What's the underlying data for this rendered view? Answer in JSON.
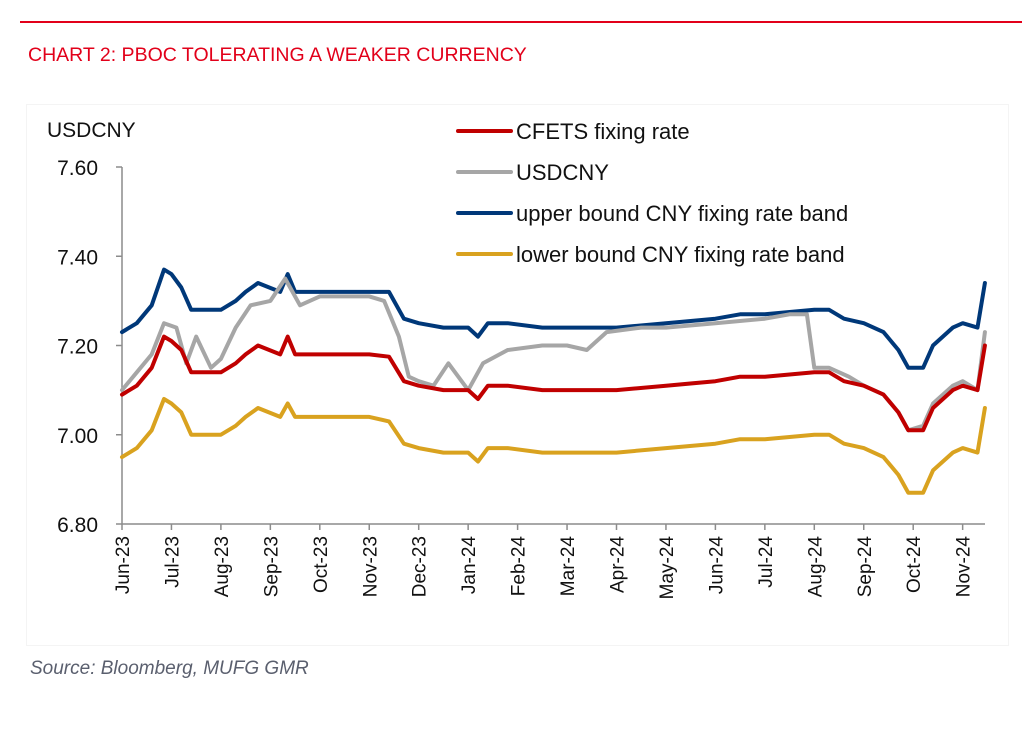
{
  "header": {
    "title": "CHART 2: PBOC TOLERATING A WEAKER CURRENCY"
  },
  "footer": {
    "source": "Source: Bloomberg, MUFG GMR"
  },
  "chart_data": {
    "type": "line",
    "title": "CHART 2: PBOC TOLERATING A WEAKER CURRENCY",
    "ylabel": "USDCNY",
    "xlabel": "",
    "ylim": [
      6.8,
      7.6
    ],
    "yticks": [
      6.8,
      7.0,
      7.2,
      7.4,
      7.6
    ],
    "ytick_labels": [
      "6.80",
      "7.00",
      "7.20",
      "7.40",
      "7.60"
    ],
    "xtick_labels": [
      "Jun-23",
      "Jul-23",
      "Aug-23",
      "Sep-23",
      "Oct-23",
      "Nov-23",
      "Dec-23",
      "Jan-24",
      "Feb-24",
      "Mar-24",
      "Apr-24",
      "May-24",
      "Jun-24",
      "Jul-24",
      "Aug-24",
      "Sep-24",
      "Oct-24",
      "Nov-24"
    ],
    "x_unit": "months since Jun-23",
    "xlim": [
      0,
      17.45
    ],
    "grid": false,
    "legend_position": "top-right",
    "series": [
      {
        "name": "CFETS fixing rate",
        "color": "#c00000",
        "points": [
          [
            0,
            7.09
          ],
          [
            0.3,
            7.11
          ],
          [
            0.6,
            7.15
          ],
          [
            0.85,
            7.22
          ],
          [
            1.0,
            7.21
          ],
          [
            1.2,
            7.19
          ],
          [
            1.4,
            7.14
          ],
          [
            1.7,
            7.14
          ],
          [
            2.0,
            7.14
          ],
          [
            2.3,
            7.16
          ],
          [
            2.5,
            7.18
          ],
          [
            2.75,
            7.2
          ],
          [
            3.2,
            7.18
          ],
          [
            3.35,
            7.22
          ],
          [
            3.5,
            7.18
          ],
          [
            4.0,
            7.18
          ],
          [
            5.0,
            7.18
          ],
          [
            5.4,
            7.175
          ],
          [
            5.7,
            7.12
          ],
          [
            6.0,
            7.11
          ],
          [
            6.5,
            7.1
          ],
          [
            7.0,
            7.1
          ],
          [
            7.2,
            7.08
          ],
          [
            7.4,
            7.11
          ],
          [
            7.8,
            7.11
          ],
          [
            8.5,
            7.1
          ],
          [
            9.0,
            7.1
          ],
          [
            10.0,
            7.1
          ],
          [
            11.0,
            7.11
          ],
          [
            12.0,
            7.12
          ],
          [
            12.5,
            7.13
          ],
          [
            13.0,
            7.13
          ],
          [
            14.0,
            7.14
          ],
          [
            14.3,
            7.14
          ],
          [
            14.6,
            7.12
          ],
          [
            15.0,
            7.11
          ],
          [
            15.4,
            7.09
          ],
          [
            15.7,
            7.05
          ],
          [
            15.9,
            7.01
          ],
          [
            16.2,
            7.01
          ],
          [
            16.4,
            7.06
          ],
          [
            16.8,
            7.1
          ],
          [
            17.0,
            7.11
          ],
          [
            17.3,
            7.1
          ],
          [
            17.45,
            7.2
          ]
        ]
      },
      {
        "name": "USDCNY",
        "color": "#a6a6a6",
        "points": [
          [
            0,
            7.1
          ],
          [
            0.3,
            7.14
          ],
          [
            0.6,
            7.18
          ],
          [
            0.85,
            7.25
          ],
          [
            1.1,
            7.24
          ],
          [
            1.3,
            7.16
          ],
          [
            1.5,
            7.22
          ],
          [
            1.8,
            7.15
          ],
          [
            2.0,
            7.17
          ],
          [
            2.3,
            7.24
          ],
          [
            2.6,
            7.29
          ],
          [
            3.0,
            7.3
          ],
          [
            3.3,
            7.35
          ],
          [
            3.6,
            7.29
          ],
          [
            4.0,
            7.31
          ],
          [
            5.0,
            7.31
          ],
          [
            5.3,
            7.3
          ],
          [
            5.6,
            7.22
          ],
          [
            5.8,
            7.13
          ],
          [
            6.0,
            7.12
          ],
          [
            6.3,
            7.11
          ],
          [
            6.6,
            7.16
          ],
          [
            6.8,
            7.13
          ],
          [
            7.0,
            7.1
          ],
          [
            7.3,
            7.16
          ],
          [
            7.8,
            7.19
          ],
          [
            8.5,
            7.2
          ],
          [
            9.0,
            7.2
          ],
          [
            9.4,
            7.19
          ],
          [
            9.8,
            7.23
          ],
          [
            10.5,
            7.24
          ],
          [
            11.0,
            7.24
          ],
          [
            12.0,
            7.25
          ],
          [
            13.0,
            7.26
          ],
          [
            13.5,
            7.27
          ],
          [
            13.85,
            7.27
          ],
          [
            14.0,
            7.15
          ],
          [
            14.3,
            7.15
          ],
          [
            14.7,
            7.13
          ],
          [
            15.0,
            7.11
          ],
          [
            15.4,
            7.09
          ],
          [
            15.7,
            7.05
          ],
          [
            15.9,
            7.01
          ],
          [
            16.2,
            7.02
          ],
          [
            16.4,
            7.07
          ],
          [
            16.8,
            7.11
          ],
          [
            17.0,
            7.12
          ],
          [
            17.3,
            7.1
          ],
          [
            17.45,
            7.23
          ]
        ]
      },
      {
        "name": "upper bound CNY fixing rate band",
        "color": "#003879",
        "points": [
          [
            0,
            7.23
          ],
          [
            0.3,
            7.25
          ],
          [
            0.6,
            7.29
          ],
          [
            0.85,
            7.37
          ],
          [
            1.0,
            7.36
          ],
          [
            1.2,
            7.33
          ],
          [
            1.4,
            7.28
          ],
          [
            1.7,
            7.28
          ],
          [
            2.0,
            7.28
          ],
          [
            2.3,
            7.3
          ],
          [
            2.5,
            7.32
          ],
          [
            2.75,
            7.34
          ],
          [
            3.2,
            7.32
          ],
          [
            3.35,
            7.36
          ],
          [
            3.5,
            7.32
          ],
          [
            4.0,
            7.32
          ],
          [
            5.0,
            7.32
          ],
          [
            5.4,
            7.32
          ],
          [
            5.7,
            7.26
          ],
          [
            6.0,
            7.25
          ],
          [
            6.5,
            7.24
          ],
          [
            7.0,
            7.24
          ],
          [
            7.2,
            7.22
          ],
          [
            7.4,
            7.25
          ],
          [
            7.8,
            7.25
          ],
          [
            8.5,
            7.24
          ],
          [
            9.0,
            7.24
          ],
          [
            10.0,
            7.24
          ],
          [
            11.0,
            7.25
          ],
          [
            12.0,
            7.26
          ],
          [
            12.5,
            7.27
          ],
          [
            13.0,
            7.27
          ],
          [
            14.0,
            7.28
          ],
          [
            14.3,
            7.28
          ],
          [
            14.6,
            7.26
          ],
          [
            15.0,
            7.25
          ],
          [
            15.4,
            7.23
          ],
          [
            15.7,
            7.19
          ],
          [
            15.9,
            7.15
          ],
          [
            16.2,
            7.15
          ],
          [
            16.4,
            7.2
          ],
          [
            16.8,
            7.24
          ],
          [
            17.0,
            7.25
          ],
          [
            17.3,
            7.24
          ],
          [
            17.45,
            7.34
          ]
        ]
      },
      {
        "name": "lower bound CNY fixing rate band",
        "color": "#d9a21f",
        "points": [
          [
            0,
            6.95
          ],
          [
            0.3,
            6.97
          ],
          [
            0.6,
            7.01
          ],
          [
            0.85,
            7.08
          ],
          [
            1.0,
            7.07
          ],
          [
            1.2,
            7.05
          ],
          [
            1.4,
            7.0
          ],
          [
            1.7,
            7.0
          ],
          [
            2.0,
            7.0
          ],
          [
            2.3,
            7.02
          ],
          [
            2.5,
            7.04
          ],
          [
            2.75,
            7.06
          ],
          [
            3.2,
            7.04
          ],
          [
            3.35,
            7.07
          ],
          [
            3.5,
            7.04
          ],
          [
            4.0,
            7.04
          ],
          [
            5.0,
            7.04
          ],
          [
            5.4,
            7.03
          ],
          [
            5.7,
            6.98
          ],
          [
            6.0,
            6.97
          ],
          [
            6.5,
            6.96
          ],
          [
            7.0,
            6.96
          ],
          [
            7.2,
            6.94
          ],
          [
            7.4,
            6.97
          ],
          [
            7.8,
            6.97
          ],
          [
            8.5,
            6.96
          ],
          [
            9.0,
            6.96
          ],
          [
            10.0,
            6.96
          ],
          [
            11.0,
            6.97
          ],
          [
            12.0,
            6.98
          ],
          [
            12.5,
            6.99
          ],
          [
            13.0,
            6.99
          ],
          [
            14.0,
            7.0
          ],
          [
            14.3,
            7.0
          ],
          [
            14.6,
            6.98
          ],
          [
            15.0,
            6.97
          ],
          [
            15.4,
            6.95
          ],
          [
            15.7,
            6.91
          ],
          [
            15.9,
            6.87
          ],
          [
            16.2,
            6.87
          ],
          [
            16.4,
            6.92
          ],
          [
            16.8,
            6.96
          ],
          [
            17.0,
            6.97
          ],
          [
            17.3,
            6.96
          ],
          [
            17.45,
            7.06
          ]
        ]
      }
    ]
  }
}
